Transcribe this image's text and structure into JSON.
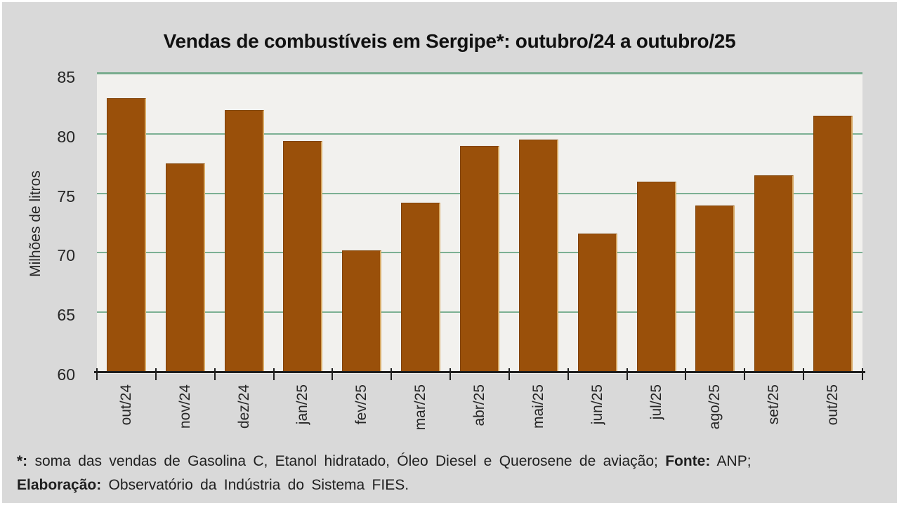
{
  "chart_data": {
    "type": "bar",
    "title": "Vendas de combustíveis em Sergipe*: outubro/24 a outubro/25",
    "xlabel": "",
    "ylabel": "Milhões de litros",
    "categories": [
      "out/24",
      "nov/24",
      "dez/24",
      "jan/25",
      "fev/25",
      "mar/25",
      "abr/25",
      "mai/25",
      "jun/25",
      "jul/25",
      "ago/25",
      "set/25",
      "out/25"
    ],
    "values": [
      83.0,
      77.5,
      82.0,
      79.4,
      70.2,
      74.2,
      79.0,
      79.5,
      71.6,
      76.0,
      74.0,
      76.5,
      81.5
    ],
    "ylim": [
      60,
      85
    ],
    "yticks": [
      60,
      65,
      70,
      75,
      80,
      85
    ],
    "grid": true,
    "legend": "none"
  },
  "colors": {
    "slide_background": "#D9D9D9",
    "plot_background": "#F2F1EE",
    "bar_fill": "#9A500A",
    "bar_edge_highlight": "#D7A965",
    "gridline_green": "#7CB093",
    "axis_black": "#1f1f1f",
    "text": "#262626"
  },
  "footnote": {
    "lines": [
      [
        {
          "text": "*:",
          "bold": true
        },
        {
          "text": " soma das vendas de Gasolina C, Etanol hidratado, Óleo Diesel e Querosene de aviação; ",
          "bold": false
        },
        {
          "text": "Fonte:",
          "bold": true
        },
        {
          "text": " ANP;",
          "bold": false
        }
      ],
      [
        {
          "text": "Elaboração:",
          "bold": true
        },
        {
          "text": " Observatório da Indústria do Sistema FIES.",
          "bold": false
        }
      ]
    ]
  }
}
